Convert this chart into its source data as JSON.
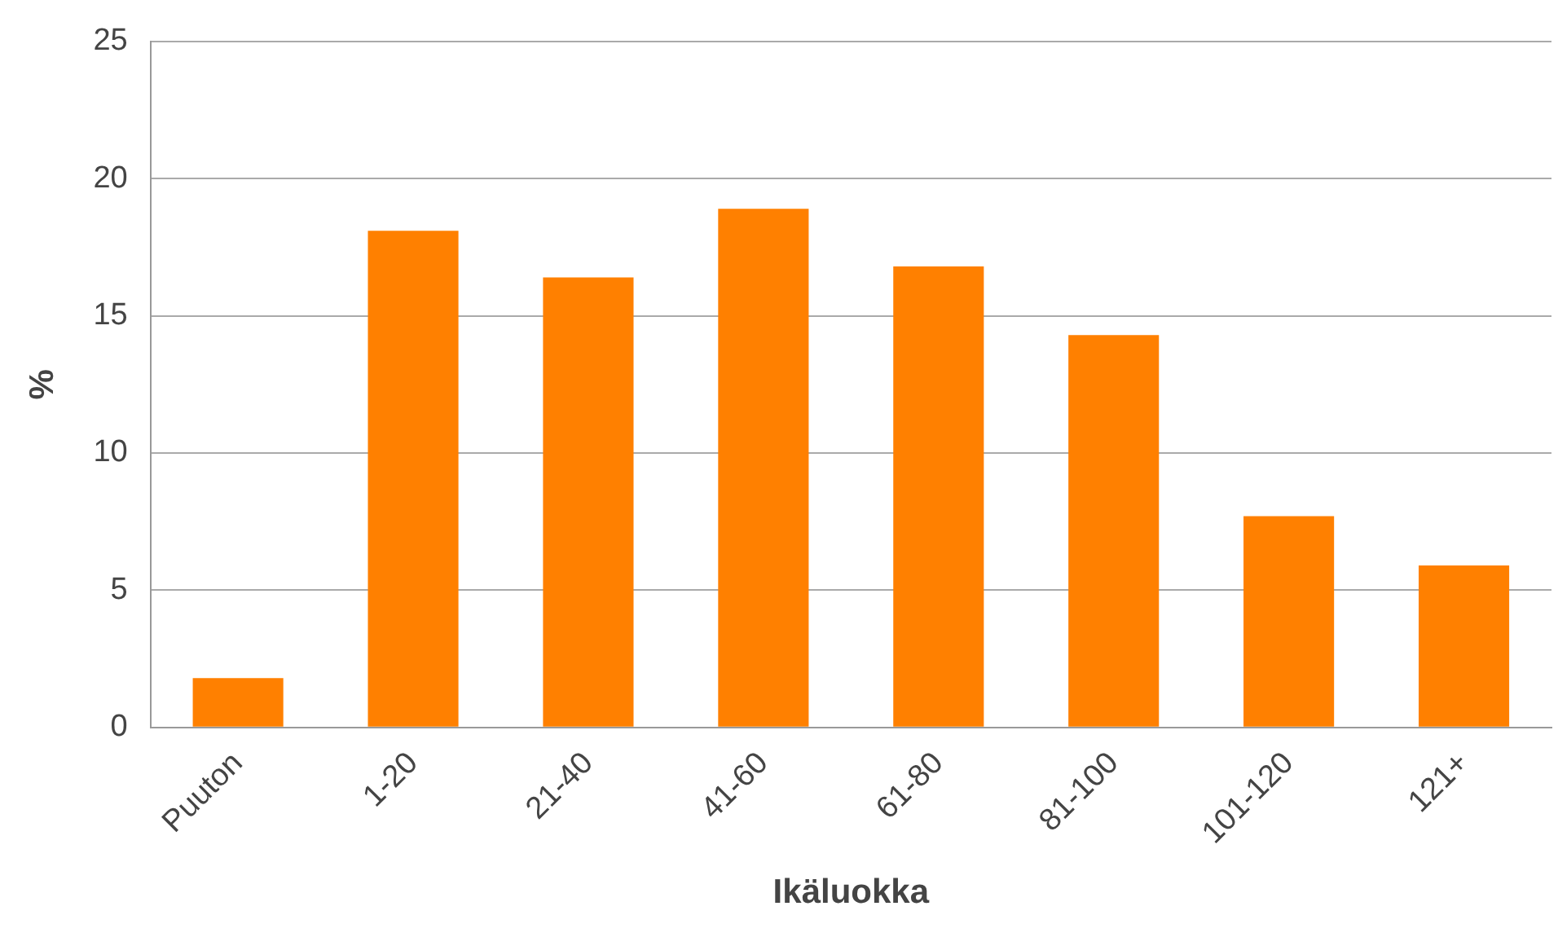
{
  "chart_data": {
    "type": "bar",
    "xlabel": "Ikäluokka",
    "ylabel": "%",
    "categories": [
      "Puuton",
      "1-20",
      "21-40",
      "41-60",
      "61-80",
      "81-100",
      "101-120",
      "121+"
    ],
    "values": [
      1.8,
      18.1,
      16.4,
      18.9,
      16.8,
      14.3,
      7.7,
      5.9
    ],
    "color": "#ff8000",
    "ylim": [
      0,
      25
    ],
    "yticks": [
      0,
      5,
      10,
      15,
      20,
      25
    ],
    "grid": "y",
    "legend": false
  }
}
